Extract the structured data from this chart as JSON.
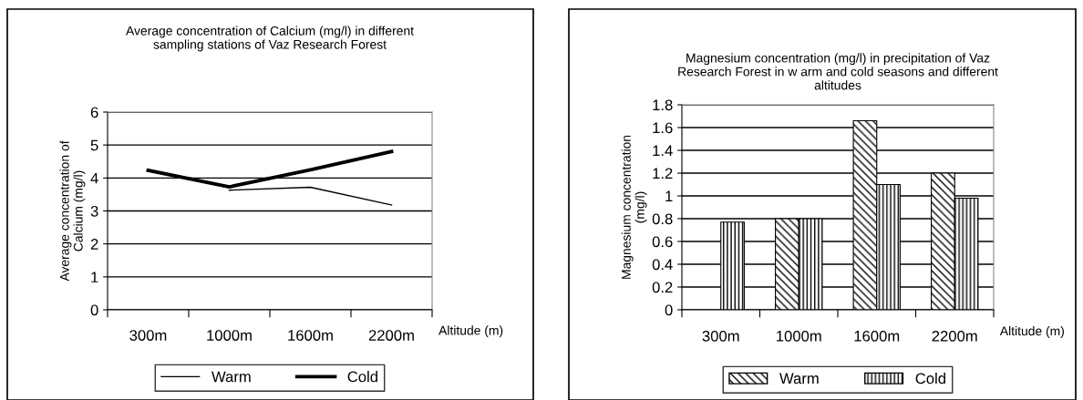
{
  "chart_data": [
    {
      "type": "line",
      "title": "Average concentration of Calcium (mg/l) in different\nsampling stations of Vaz Research Forest",
      "xlabel": "Altitude (m)",
      "ylabel": "Average concentration of\nCalcium (mg/l)",
      "categories": [
        "300m",
        "1000m",
        "1600m",
        "2200m"
      ],
      "series": [
        {
          "name": "Warm",
          "color": "#000000",
          "values": [
            null,
            3.63,
            3.72,
            3.18
          ]
        },
        {
          "name": "Cold",
          "color": "#000000",
          "values": [
            4.23,
            3.73,
            4.25,
            4.8
          ]
        }
      ],
      "ylim": [
        0,
        6
      ],
      "yticks": [
        0,
        1,
        2,
        3,
        4,
        5,
        6
      ],
      "grid": "y",
      "legend": "bottom",
      "marker": "none",
      "line_style": "solid"
    },
    {
      "type": "bar",
      "title": "Magnesium concentration (mg/l) in precipitation of Vaz\nResearch Forest in w arm and cold seasons and different\naltitudes",
      "xlabel": "Altitude (m)",
      "ylabel": "Magnesium concentration\n(mg/l)",
      "categories": [
        "300m",
        "1000m",
        "1600m",
        "2200m"
      ],
      "series": [
        {
          "name": "Warm",
          "color": "#000000",
          "values": [
            null,
            0.8,
            1.66,
            1.2
          ]
        },
        {
          "name": "Cold",
          "color": "#000000",
          "values": [
            0.77,
            0.8,
            1.1,
            0.98
          ]
        }
      ],
      "ylim": [
        0,
        1.8
      ],
      "yticks": [
        0,
        {
          "value": 0.2,
          "label": "0.2"
        },
        {
          "value": 0.4,
          "label": "0.4"
        },
        {
          "value": 0.6,
          "label": "0.6"
        },
        {
          "value": 0.8,
          "label": "0.8"
        },
        1,
        {
          "value": 1.2,
          "label": "1.2"
        },
        {
          "value": 1.4,
          "label": "1.4"
        },
        {
          "value": 1.6,
          "label": "1.6"
        },
        {
          "value": 1.8,
          "label": "1.8"
        }
      ],
      "grid": "y",
      "legend": "bottom"
    }
  ]
}
